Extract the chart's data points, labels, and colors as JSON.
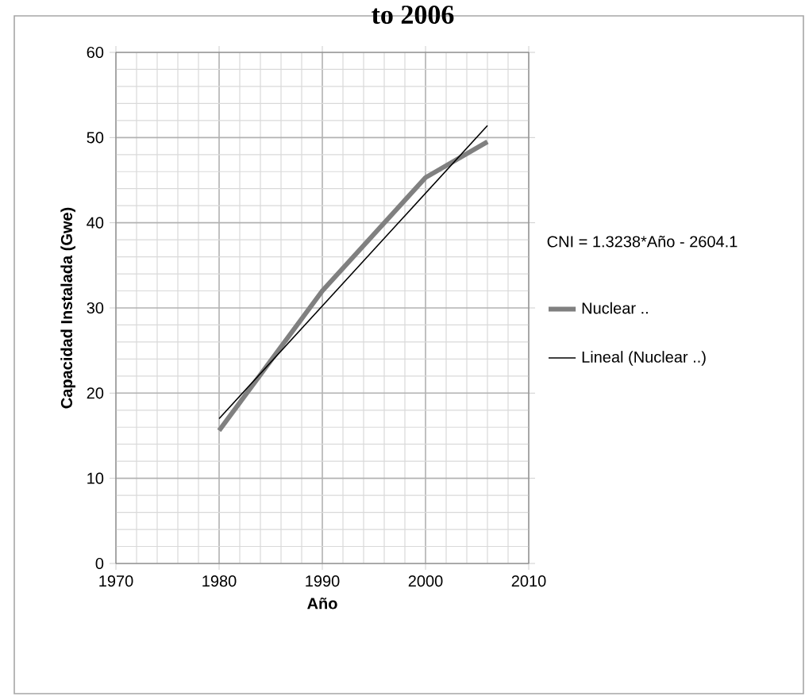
{
  "chart_data": {
    "type": "line",
    "title": "to 2006",
    "xlabel": "Año",
    "ylabel": "Capacidad Instalada (Gwe)",
    "xlim": [
      1970,
      2010
    ],
    "xticks": [
      1970,
      1980,
      1990,
      2000,
      2010
    ],
    "ylim": [
      0,
      60
    ],
    "yticks": [
      0,
      10,
      20,
      30,
      40,
      50,
      60
    ],
    "grid": true,
    "legend": "right",
    "annotations": [
      "CNI = 1.3238*Año - 2604.1"
    ],
    "series": [
      {
        "name": "Nuclear ..",
        "color": "#808080",
        "x": [
          1980,
          1990,
          2000,
          2006
        ],
        "values": [
          15.6,
          32,
          45.3,
          49.5
        ]
      },
      {
        "name": "Lineal (Nuclear ..)",
        "color": "#000000",
        "x": [
          1980,
          2006
        ],
        "values": [
          17.0,
          51.4
        ]
      }
    ]
  }
}
